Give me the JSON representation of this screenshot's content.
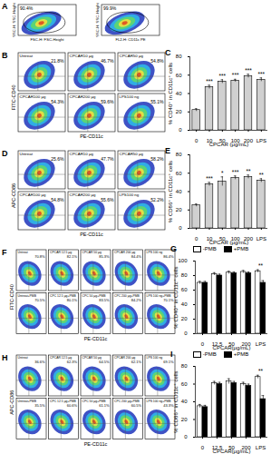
{
  "flow_panels": [
    {
      "panel": "A",
      "plots": [
        {
          "x_label": "FSC-H: FSC-Height",
          "y_label": "SSC-H: SSC-Height",
          "text": "90.4%"
        },
        {
          "x_label": "FL2-H: CD11c PE",
          "y_label": "SSC-H: SSC-Height",
          "text": "99.9%"
        }
      ]
    },
    {
      "panel": "B",
      "x_label": "PE-CD11c",
      "y_label": "FITC-CD40",
      "plots": [
        {
          "label": "Untreat",
          "text": "21.8%"
        },
        {
          "label": "CPCAR10 μg",
          "text": "46.7%"
        },
        {
          "label": "CPCAR50 μg",
          "text": "54.8%"
        },
        {
          "label": "CPCAR100 μg",
          "text": "54.3%"
        },
        {
          "label": "CPCAR200 μg",
          "text": "59.6%"
        },
        {
          "label": "LPS100 ng",
          "text": "55.1%"
        }
      ]
    },
    {
      "panel": "D",
      "x_label": "PE-CD11c",
      "y_label": "APC-CD86",
      "plots": [
        {
          "label": "Untreat",
          "text": "25.6%"
        },
        {
          "label": "CPCAR10 μg",
          "text": "47.7%"
        },
        {
          "label": "CPCAR50 μg",
          "text": "58.2%"
        },
        {
          "label": "CPCAR100 μg",
          "text": "54.8%"
        },
        {
          "label": "CPCAR200 μg",
          "text": "55.6%"
        },
        {
          "label": "LPS100 ng",
          "text": "52.2%"
        }
      ]
    },
    {
      "panel": "F",
      "x_label": "PE-CD11c",
      "y_label": "FITC-CD40",
      "plots": [
        {
          "label": "Untreat",
          "text": "70.8%"
        },
        {
          "label": "CPCAR 12.5 μg",
          "text": "82.1%"
        },
        {
          "label": "CPCAR 50 μg",
          "text": "85.3%"
        },
        {
          "label": "CPCAR 200 μg",
          "text": "84.4%"
        },
        {
          "label": "LPS 100 ng",
          "text": "86.4%"
        },
        {
          "label": "Untreat+PMB",
          "text": "70.5%"
        },
        {
          "label": "CPC 12.5 μg+PMB",
          "text": "80.1%"
        },
        {
          "label": "CPC 50 μg+PMB",
          "text": "83.5%"
        },
        {
          "label": "CPC 200 μg+PMB",
          "text": "84.2%"
        },
        {
          "label": "LPS 100 ng+PMB",
          "text": "70.1%"
        }
      ]
    },
    {
      "panel": "H",
      "x_label": "PE-CD11c",
      "y_label": "APC-CD86",
      "plots": [
        {
          "label": "Untreat",
          "text": "36.6%"
        },
        {
          "label": "CPCAR 12.5 μg",
          "text": "62.3%"
        },
        {
          "label": "CPCAR 50 μg",
          "text": "64.5%"
        },
        {
          "label": "CPCAR 200 μg",
          "text": "62.1%"
        },
        {
          "label": "LPS 100 ng",
          "text": "69.1%"
        },
        {
          "label": "Untreat+PMB",
          "text": "35.5%"
        },
        {
          "label": "CPC 12.5 μg+PMB",
          "text": "60.6%"
        },
        {
          "label": "CPC 50 μg+PMB",
          "text": "61.1%"
        },
        {
          "label": "CPC 200 μg+PMB",
          "text": "60.5%"
        },
        {
          "label": "LPS 100 ng+PMB",
          "text": "43.3%"
        }
      ]
    }
  ],
  "chart_data": [
    {
      "panel": "C",
      "type": "bar",
      "x_label": "CPCAR (μg/mL)",
      "y_label": "% CD40⁺ in CD11c⁺ cells",
      "categories": [
        "0",
        "10",
        "50",
        "100",
        "200",
        "LPS"
      ],
      "values": [
        22,
        47,
        53,
        54,
        59,
        55
      ],
      "errors": [
        1.5,
        2,
        2,
        1.5,
        2,
        2
      ],
      "annotations": [
        null,
        "***",
        "***",
        "***",
        "***",
        "***"
      ],
      "color": "#d0d0d0",
      "ylim": [
        0,
        80
      ],
      "yticks": [
        0,
        20,
        40,
        60,
        80
      ]
    },
    {
      "panel": "E",
      "type": "bar",
      "x_label": "CPCAR (μg/mL)",
      "y_label": "% CD86⁺ in CD11c⁺ cells",
      "categories": [
        "0",
        "10",
        "50",
        "100",
        "200",
        "LPS"
      ],
      "values": [
        25,
        48,
        51,
        55,
        56,
        52
      ],
      "errors": [
        1.5,
        2,
        5,
        2,
        2,
        2
      ],
      "annotations": [
        null,
        "***",
        "*",
        "***",
        "**",
        "**"
      ],
      "color": "#d0d0d0",
      "ylim": [
        0,
        80
      ],
      "yticks": [
        0,
        20,
        40,
        60,
        80
      ]
    },
    {
      "panel": "G",
      "type": "bar",
      "x_label": "CPCAR(μg/mL)",
      "y_label": "% CD40⁺ in CD11c⁺ cells",
      "categories": [
        "0",
        "12.5",
        "50",
        "200",
        "LPS"
      ],
      "series": [
        {
          "name": "-PMB",
          "color": "#ffffff",
          "values": [
            70,
            82,
            84,
            85,
            86
          ],
          "errors": [
            2,
            2,
            2,
            2,
            2
          ]
        },
        {
          "name": "+PMB",
          "color": "#000000",
          "values": [
            70,
            80,
            83,
            83,
            70
          ],
          "errors": [
            2,
            2,
            2,
            2,
            3
          ]
        }
      ],
      "annotations": [
        null,
        null,
        null,
        null,
        "**"
      ],
      "legend": "top",
      "ylim": [
        0,
        100
      ],
      "yticks": [
        0,
        20,
        40,
        60,
        80,
        100
      ]
    },
    {
      "panel": "I",
      "type": "bar",
      "x_label": "CPCAR(μg/mL)",
      "y_label": "% CD86⁺ in CD11c⁺ cells",
      "categories": [
        "0",
        "12.5",
        "50",
        "200",
        "LPS"
      ],
      "series": [
        {
          "name": "-PMB",
          "color": "#ffffff",
          "values": [
            35,
            61,
            63,
            60,
            68
          ],
          "errors": [
            2,
            2,
            3,
            2,
            2
          ]
        },
        {
          "name": "+PMB",
          "color": "#000000",
          "values": [
            34,
            60,
            61,
            58,
            43
          ],
          "errors": [
            2,
            2,
            2,
            2,
            4
          ]
        }
      ],
      "annotations": [
        null,
        null,
        null,
        null,
        "**"
      ],
      "legend": "top",
      "ylim": [
        0,
        80
      ],
      "yticks": [
        0,
        20,
        40,
        60,
        80
      ]
    }
  ]
}
